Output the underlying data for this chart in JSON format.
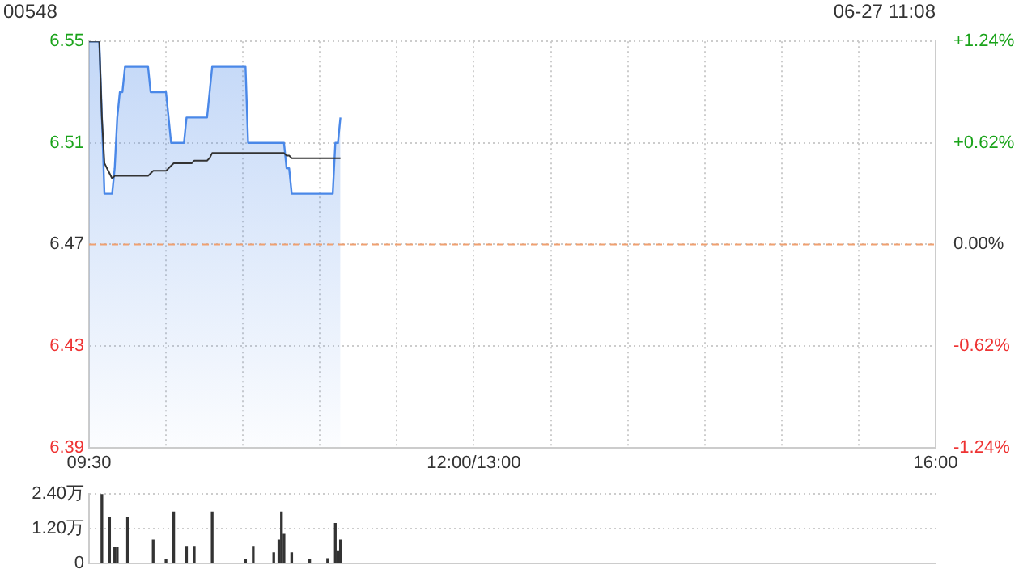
{
  "chart_data": [
    {
      "type": "line",
      "title": "00548",
      "annotations": [
        "06-27 11:08"
      ],
      "categories": [
        "09:30",
        null,
        null,
        null,
        null,
        null,
        null,
        null,
        null,
        null,
        null,
        null,
        null,
        null,
        null,
        null,
        null,
        null,
        null,
        null,
        null,
        null,
        null,
        null,
        null,
        null,
        null,
        null,
        null,
        null,
        null,
        null,
        null,
        null,
        null,
        null,
        null,
        null,
        null,
        null,
        null,
        null,
        null,
        null,
        null,
        null,
        null,
        null,
        null,
        null,
        null,
        null,
        null,
        null,
        null,
        null,
        null,
        null,
        null,
        null,
        null,
        null,
        null,
        null,
        null,
        null,
        null,
        null,
        null,
        null,
        null,
        null,
        null,
        null,
        null,
        null,
        null,
        null,
        null,
        null,
        null,
        null,
        null,
        null,
        null,
        null,
        null,
        null,
        null,
        null,
        null,
        null,
        null,
        null,
        null,
        null,
        null,
        null,
        null,
        null,
        null,
        null,
        null,
        null,
        null,
        null,
        null,
        null,
        null,
        null,
        null,
        null,
        null,
        null,
        null,
        null,
        null,
        null,
        null,
        null,
        null,
        null,
        null,
        null,
        null,
        null,
        null,
        null,
        null,
        null,
        null,
        null,
        null,
        null,
        null,
        null,
        null,
        null,
        null,
        null,
        null,
        null,
        null,
        null,
        null,
        null,
        null,
        null,
        null,
        null,
        "12:00/13:00",
        null,
        null,
        null,
        null,
        null,
        null,
        null,
        null,
        null,
        null,
        null,
        null,
        null,
        null,
        null,
        null,
        null,
        null,
        null,
        null,
        null,
        null,
        null,
        null,
        null,
        null,
        null,
        null,
        null,
        null,
        null,
        null,
        null,
        null,
        null,
        null,
        null,
        null,
        null,
        null,
        null,
        null,
        null,
        null,
        null,
        null,
        null,
        null,
        null,
        null,
        null,
        null,
        null,
        null,
        null,
        null,
        null,
        null,
        null,
        null,
        null,
        null,
        null,
        null,
        null,
        null,
        null,
        null,
        null,
        null,
        null,
        null,
        null,
        null,
        null,
        null,
        null,
        null,
        null,
        null,
        null,
        null,
        null,
        null,
        null,
        null,
        null,
        null,
        null,
        null,
        null,
        null,
        null,
        null,
        null,
        null,
        null,
        null,
        null,
        null,
        null,
        null,
        null,
        null,
        null,
        null,
        null,
        null,
        null,
        null,
        null,
        null,
        null,
        null,
        null,
        null,
        null,
        null,
        null,
        null,
        null,
        null,
        null,
        null,
        null,
        null,
        null,
        null,
        null,
        null,
        null,
        null,
        null,
        null,
        null,
        null,
        null,
        null,
        null,
        null,
        null,
        null,
        null,
        null,
        null,
        null,
        null,
        null,
        null,
        null,
        null,
        null,
        null,
        null,
        null,
        null,
        null,
        null,
        null,
        null,
        null,
        null,
        null,
        null,
        null,
        null,
        null,
        null,
        null,
        null,
        null,
        null,
        null,
        null,
        null,
        null,
        null,
        null,
        null,
        "16:00"
      ],
      "series": [
        {
          "type": "area",
          "color": "#4a88e8",
          "values": [
            6.55,
            6.55,
            6.55,
            6.55,
            6.55,
            6.52,
            6.49,
            6.49,
            6.49,
            6.49,
            6.5,
            6.52,
            6.53,
            6.53,
            6.54,
            6.54,
            6.54,
            6.54,
            6.54,
            6.54,
            6.54,
            6.54,
            6.54,
            6.54,
            6.53,
            6.53,
            6.53,
            6.53,
            6.53,
            6.53,
            6.53,
            6.52,
            6.51,
            6.51,
            6.51,
            6.51,
            6.51,
            6.51,
            6.52,
            6.52,
            6.52,
            6.52,
            6.52,
            6.52,
            6.52,
            6.52,
            6.52,
            6.53,
            6.54,
            6.54,
            6.54,
            6.54,
            6.54,
            6.54,
            6.54,
            6.54,
            6.54,
            6.54,
            6.54,
            6.54,
            6.54,
            6.54,
            6.51,
            6.51,
            6.51,
            6.51,
            6.51,
            6.51,
            6.51,
            6.51,
            6.51,
            6.51,
            6.51,
            6.51,
            6.51,
            6.51,
            6.51,
            6.5,
            6.5,
            6.49,
            6.49,
            6.49,
            6.49,
            6.49,
            6.49,
            6.49,
            6.49,
            6.49,
            6.49,
            6.49,
            6.49,
            6.49,
            6.49,
            6.49,
            6.49,
            6.49,
            6.51,
            6.51,
            6.52,
            null,
            null,
            null,
            null,
            null,
            null,
            null,
            null,
            null,
            null,
            null,
            null,
            null,
            null,
            null,
            null,
            null,
            null,
            null,
            null,
            null,
            null,
            null,
            null,
            null,
            null,
            null,
            null,
            null,
            null,
            null,
            null,
            null,
            null,
            null,
            null,
            null,
            null,
            null,
            null,
            null,
            null,
            null,
            null,
            null,
            null,
            null,
            null,
            null,
            null,
            null,
            null,
            null,
            null,
            null,
            null,
            null,
            null,
            null,
            null,
            null,
            null,
            null,
            null,
            null,
            null,
            null,
            null,
            null,
            null,
            null,
            null,
            null,
            null,
            null,
            null,
            null,
            null,
            null,
            null,
            null,
            null,
            null,
            null,
            null,
            null,
            null,
            null,
            null,
            null,
            null,
            null,
            null,
            null,
            null,
            null,
            null,
            null,
            null,
            null,
            null,
            null,
            null,
            null,
            null,
            null,
            null,
            null,
            null,
            null,
            null,
            null,
            null,
            null,
            null,
            null,
            null,
            null,
            null,
            null,
            null,
            null,
            null,
            null,
            null,
            null,
            null,
            null,
            null,
            null,
            null,
            null,
            null,
            null,
            null,
            null,
            null,
            null,
            null,
            null,
            null,
            null,
            null,
            null,
            null,
            null,
            null,
            null,
            null,
            null,
            null,
            null,
            null,
            null,
            null,
            null,
            null,
            null,
            null,
            null,
            null,
            null,
            null,
            null,
            null,
            null,
            null,
            null,
            null,
            null,
            null,
            null,
            null,
            null,
            null,
            null,
            null,
            null,
            null,
            null,
            null,
            null,
            null,
            null,
            null,
            null,
            null,
            null,
            null,
            null,
            null,
            null,
            null,
            null,
            null,
            null,
            null,
            null,
            null,
            null,
            null,
            null,
            null,
            null,
            null,
            null,
            null,
            null,
            null,
            null,
            null,
            null,
            null,
            null,
            null,
            null,
            null,
            null,
            null,
            null,
            null,
            null,
            null,
            null,
            null,
            null,
            null,
            null,
            null,
            null,
            null,
            null
          ]
        },
        {
          "type": "line",
          "color": "#333333",
          "values": [
            6.55,
            6.55,
            6.55,
            6.55,
            6.55,
            6.52,
            6.502,
            6.5,
            6.498,
            6.496,
            6.497,
            6.497,
            6.497,
            6.497,
            6.497,
            6.497,
            6.497,
            6.497,
            6.497,
            6.497,
            6.497,
            6.497,
            6.497,
            6.497,
            6.498,
            6.499,
            6.499,
            6.499,
            6.499,
            6.499,
            6.499,
            6.5,
            6.501,
            6.502,
            6.502,
            6.502,
            6.502,
            6.502,
            6.502,
            6.502,
            6.502,
            6.503,
            6.503,
            6.503,
            6.503,
            6.503,
            6.503,
            6.504,
            6.506,
            6.506,
            6.506,
            6.506,
            6.506,
            6.506,
            6.506,
            6.506,
            6.506,
            6.506,
            6.506,
            6.506,
            6.506,
            6.506,
            6.506,
            6.506,
            6.506,
            6.506,
            6.506,
            6.506,
            6.506,
            6.506,
            6.506,
            6.506,
            6.506,
            6.506,
            6.506,
            6.506,
            6.506,
            6.505,
            6.505,
            6.504,
            6.504,
            6.504,
            6.504,
            6.504,
            6.504,
            6.504,
            6.504,
            6.504,
            6.504,
            6.504,
            6.504,
            6.504,
            6.504,
            6.504,
            6.504,
            6.504,
            6.504,
            6.504,
            6.504,
            null,
            null,
            null,
            null,
            null,
            null,
            null,
            null,
            null,
            null,
            null,
            null,
            null,
            null,
            null,
            null,
            null,
            null,
            null,
            null,
            null,
            null,
            null,
            null,
            null,
            null,
            null,
            null,
            null,
            null,
            null,
            null,
            null,
            null,
            null,
            null,
            null,
            null,
            null,
            null,
            null,
            null,
            null,
            null,
            null,
            null,
            null,
            null,
            null,
            null,
            null,
            null,
            null,
            null,
            null,
            null,
            null,
            null,
            null,
            null,
            null,
            null,
            null,
            null,
            null,
            null,
            null,
            null,
            null,
            null,
            null,
            null,
            null,
            null,
            null,
            null,
            null,
            null,
            null,
            null,
            null,
            null,
            null,
            null,
            null,
            null,
            null,
            null,
            null,
            null,
            null,
            null,
            null,
            null,
            null,
            null,
            null,
            null,
            null,
            null,
            null,
            null,
            null,
            null,
            null,
            null,
            null,
            null,
            null,
            null,
            null,
            null,
            null,
            null,
            null,
            null,
            null,
            null,
            null,
            null,
            null,
            null,
            null,
            null,
            null,
            null,
            null,
            null,
            null,
            null,
            null,
            null,
            null,
            null,
            null,
            null,
            null,
            null,
            null,
            null,
            null,
            null,
            null,
            null,
            null,
            null,
            null,
            null,
            null,
            null,
            null,
            null,
            null,
            null,
            null,
            null,
            null,
            null,
            null,
            null,
            null,
            null,
            null,
            null,
            null,
            null,
            null,
            null,
            null,
            null,
            null,
            null,
            null,
            null,
            null,
            null,
            null,
            null,
            null,
            null,
            null,
            null,
            null,
            null,
            null,
            null,
            null,
            null,
            null,
            null,
            null,
            null,
            null,
            null,
            null,
            null,
            null,
            null,
            null,
            null,
            null,
            null,
            null,
            null,
            null,
            null,
            null,
            null,
            null,
            null,
            null,
            null,
            null,
            null,
            null,
            null,
            null,
            null,
            null,
            null,
            null,
            null,
            null,
            null,
            null,
            null,
            null,
            null,
            null,
            null,
            null,
            null
          ]
        }
      ],
      "marker": "none",
      "ylim": [
        6.39,
        6.55
      ],
      "yticks": [
        6.39,
        6.43,
        6.47,
        6.51,
        6.55
      ],
      "y2lim": [
        -1.24,
        1.24
      ],
      "y2ticks": [
        {
          "value": -1.24,
          "label": "-1.24%"
        },
        {
          "value": -0.62,
          "label": "-0.62%"
        },
        {
          "value": 0,
          "label": "0.00%"
        },
        {
          "value": 0.62,
          "label": "+0.62%"
        },
        {
          "value": 1.24,
          "label": "+1.24%"
        }
      ],
      "ref_lines": [
        {
          "axis": "y",
          "value": 6.47,
          "color": "#f0a070",
          "line_style": "dashed"
        }
      ],
      "grid": true
    },
    {
      "type": "bar",
      "color": "#333333",
      "categories": [
        null,
        null,
        null,
        null,
        null,
        null,
        null,
        null,
        null,
        null,
        null,
        null,
        null,
        null,
        null,
        null,
        null,
        null,
        null,
        null,
        null,
        null,
        null,
        null,
        null,
        null,
        null,
        null,
        null,
        null,
        null,
        null,
        null,
        null,
        null,
        null,
        null,
        null,
        null,
        null,
        null,
        null,
        null,
        null,
        null,
        null,
        null,
        null,
        null,
        null,
        null,
        null,
        null,
        null,
        null,
        null,
        null,
        null,
        null,
        null,
        null,
        null,
        null,
        null,
        null,
        null,
        null,
        null,
        null,
        null,
        null,
        null,
        null,
        null,
        null,
        null,
        null,
        null,
        null,
        null,
        null,
        null,
        null,
        null,
        null,
        null,
        null,
        null,
        null,
        null,
        null,
        null,
        null,
        null,
        null,
        null,
        null,
        null,
        null,
        null,
        null,
        null,
        null,
        null,
        null,
        null,
        null,
        null,
        null,
        null,
        null,
        null,
        null,
        null,
        null,
        null,
        null,
        null,
        null,
        null,
        null,
        null,
        null,
        null,
        null,
        null,
        null,
        null,
        null,
        null,
        null,
        null,
        null,
        null,
        null,
        null,
        null,
        null,
        null,
        null,
        null,
        null,
        null,
        null,
        null,
        null,
        null,
        null,
        null,
        null,
        null,
        null,
        null,
        null,
        null,
        null,
        null,
        null,
        null,
        null,
        null,
        null,
        null,
        null,
        null,
        null,
        null,
        null,
        null,
        null,
        null,
        null,
        null,
        null,
        null,
        null,
        null,
        null,
        null,
        null,
        null,
        null,
        null,
        null,
        null,
        null,
        null,
        null,
        null,
        null,
        null,
        null,
        null,
        null,
        null,
        null,
        null,
        null,
        null,
        null,
        null,
        null,
        null,
        null,
        null,
        null,
        null,
        null,
        null,
        null,
        null,
        null,
        null,
        null,
        null,
        null,
        null,
        null,
        null,
        null,
        null,
        null,
        null,
        null,
        null,
        null,
        null,
        null,
        null,
        null,
        null,
        null,
        null,
        null,
        null,
        null,
        null,
        null,
        null,
        null,
        null,
        null,
        null,
        null,
        null,
        null,
        null,
        null,
        null,
        null,
        null,
        null,
        null,
        null,
        null,
        null,
        null,
        null,
        null,
        null,
        null,
        null,
        null,
        null,
        null,
        null,
        null,
        null,
        null,
        null,
        null,
        null,
        null,
        null,
        null,
        null,
        null,
        null,
        null,
        null,
        null,
        null,
        null,
        null,
        null,
        null,
        null,
        null,
        null,
        null,
        null,
        null,
        null,
        null,
        null,
        null,
        null,
        null,
        null,
        null,
        null,
        null,
        null,
        null,
        null,
        null,
        null,
        null,
        null,
        null,
        null,
        null,
        null,
        null,
        null,
        null,
        null,
        null,
        null,
        null,
        null,
        null,
        null,
        null,
        null,
        null,
        null,
        null,
        null,
        null,
        null
      ],
      "values": [
        null,
        null,
        null,
        null,
        null,
        2.4,
        null,
        null,
        1.58,
        null,
        0.54,
        0.54,
        null,
        null,
        null,
        1.58,
        null,
        null,
        null,
        null,
        null,
        null,
        null,
        null,
        null,
        0.8,
        null,
        null,
        null,
        null,
        0.14,
        null,
        null,
        1.78,
        null,
        null,
        null,
        null,
        0.56,
        null,
        null,
        0.56,
        null,
        null,
        null,
        null,
        null,
        null,
        1.78,
        null,
        null,
        null,
        null,
        null,
        null,
        null,
        null,
        null,
        null,
        null,
        null,
        0.14,
        null,
        null,
        0.56,
        null,
        null,
        null,
        null,
        null,
        null,
        null,
        0.36,
        null,
        0.8,
        1.78,
        1.0,
        null,
        null,
        0.36,
        null,
        null,
        null,
        null,
        null,
        null,
        0.14,
        null,
        null,
        null,
        null,
        null,
        null,
        0.16,
        null,
        null,
        1.38,
        0.4,
        0.8,
        null,
        null,
        null,
        null,
        null,
        null,
        null,
        null,
        null,
        null,
        null,
        null,
        null,
        null,
        null,
        null,
        null,
        null,
        null,
        null,
        null,
        null,
        null,
        null,
        null,
        null,
        null,
        null,
        null,
        null,
        null,
        null,
        null,
        null,
        null,
        null,
        null,
        null,
        null,
        null,
        null,
        null,
        null,
        null,
        null,
        null,
        null,
        null,
        null,
        null,
        null,
        null,
        null,
        null,
        null,
        null,
        null,
        null,
        null,
        null,
        null,
        null,
        null,
        null,
        null,
        null,
        null,
        null,
        null,
        null,
        null,
        null,
        null,
        null,
        null,
        null,
        null,
        null,
        null,
        null,
        null,
        null,
        null,
        null,
        null,
        null,
        null,
        null,
        null,
        null,
        null,
        null,
        null,
        null,
        null,
        null,
        null,
        null,
        null,
        null,
        null,
        null,
        null,
        null,
        null,
        null,
        null,
        null,
        null,
        null,
        null,
        null,
        null,
        null,
        null,
        null,
        null,
        null,
        null,
        null,
        null,
        null,
        null,
        null,
        null,
        null,
        null,
        null,
        null,
        null,
        null,
        null,
        null,
        null,
        null,
        null,
        null,
        null,
        null,
        null,
        null,
        null,
        null,
        null,
        null,
        null,
        null,
        null,
        null,
        null,
        null,
        null,
        null,
        null,
        null,
        null,
        null,
        null,
        null,
        null,
        null,
        null,
        null,
        null,
        null,
        null,
        null,
        null,
        null,
        null,
        null,
        null,
        null,
        null,
        null,
        null,
        null,
        null,
        null,
        null,
        null,
        null,
        null,
        null,
        null,
        null,
        null,
        null,
        null,
        null,
        null,
        null,
        null,
        null,
        null,
        null,
        null,
        null,
        null,
        null,
        null,
        null,
        null,
        null,
        null,
        null,
        null,
        null,
        null,
        null,
        null,
        null,
        null,
        null,
        null,
        null,
        null,
        null,
        null,
        null,
        null,
        null,
        null,
        null,
        null,
        null,
        null,
        null,
        null,
        null,
        null,
        null
      ],
      "ylim": [
        0,
        2.4
      ],
      "yticks": [
        0,
        {
          "value": 1.2,
          "label": "1.20万"
        },
        {
          "value": 2.4,
          "label": "2.40万"
        }
      ],
      "grid": "y",
      "tick_labels": "y"
    }
  ]
}
